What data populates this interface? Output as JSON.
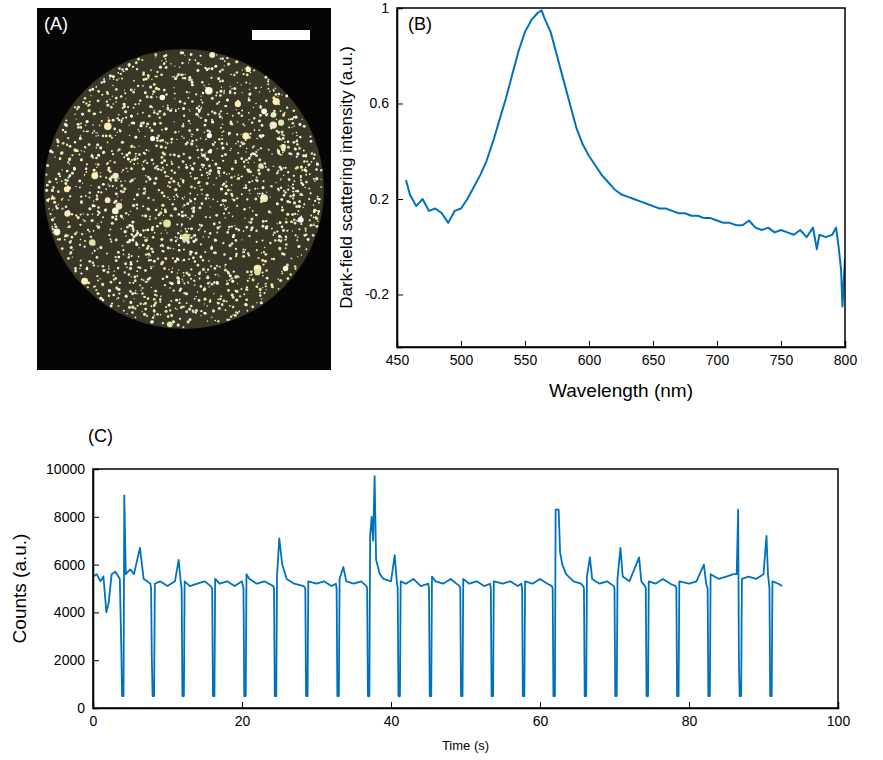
{
  "chart_data": [
    {
      "type": "image",
      "panel_label": "(A)"
    },
    {
      "type": "line",
      "panel_label": "(B)",
      "x_label": "Wavelength (nm)",
      "y_label": "Dark-field scattering intensity (a.u.)",
      "color": "#0072bd",
      "xlim": [
        450,
        800
      ],
      "xticks": [
        450,
        500,
        550,
        600,
        650,
        700,
        750,
        800
      ],
      "ylim": [
        -0.42,
        1
      ],
      "yticks": [
        -0.2,
        0.2,
        0.6,
        1
      ],
      "x": [
        457,
        460,
        465,
        470,
        475,
        480,
        485,
        490,
        495,
        500,
        505,
        510,
        515,
        520,
        525,
        530,
        535,
        540,
        545,
        550,
        555,
        560,
        563,
        565,
        570,
        575,
        580,
        585,
        590,
        595,
        600,
        605,
        610,
        615,
        620,
        625,
        630,
        635,
        640,
        645,
        650,
        655,
        660,
        665,
        670,
        675,
        680,
        685,
        690,
        695,
        700,
        705,
        710,
        715,
        720,
        725,
        730,
        735,
        740,
        745,
        750,
        755,
        760,
        765,
        770,
        775,
        778,
        780,
        785,
        790,
        793,
        795,
        797,
        798,
        800
      ],
      "values": [
        0.28,
        0.22,
        0.17,
        0.2,
        0.15,
        0.16,
        0.14,
        0.1,
        0.15,
        0.16,
        0.2,
        0.25,
        0.3,
        0.36,
        0.44,
        0.53,
        0.62,
        0.72,
        0.82,
        0.9,
        0.95,
        0.98,
        0.99,
        0.96,
        0.9,
        0.8,
        0.7,
        0.6,
        0.5,
        0.43,
        0.38,
        0.34,
        0.3,
        0.27,
        0.24,
        0.22,
        0.21,
        0.2,
        0.19,
        0.18,
        0.17,
        0.16,
        0.16,
        0.15,
        0.14,
        0.14,
        0.13,
        0.13,
        0.12,
        0.12,
        0.11,
        0.1,
        0.1,
        0.09,
        0.09,
        0.11,
        0.08,
        0.07,
        0.08,
        0.06,
        0.07,
        0.06,
        0.05,
        0.07,
        0.04,
        0.08,
        -0.01,
        0.05,
        0.04,
        0.05,
        0.08,
        0.0,
        -0.1,
        -0.25,
        -0.05
      ]
    },
    {
      "type": "line",
      "panel_label": "(C)",
      "x_label": "Time (s)",
      "y_label": "Counts (a.u.)",
      "color": "#0072bd",
      "xlim": [
        0,
        100
      ],
      "xticks": [
        0,
        20,
        40,
        60,
        80,
        100
      ],
      "ylim": [
        0,
        10000
      ],
      "yticks": [
        0,
        2000,
        4000,
        6000,
        8000,
        10000
      ],
      "x": [
        0,
        0.5,
        1,
        1.4,
        1.8,
        2.1,
        2.5,
        3,
        3.4,
        3.6,
        3.8,
        3.9,
        4.1,
        4.2,
        4.4,
        5,
        5.5,
        6.3,
        6.8,
        7.3,
        7.7,
        7.8,
        7.9,
        8,
        8.2,
        8.3,
        9,
        10,
        11,
        11.5,
        11.8,
        11.9,
        12,
        12.2,
        12.3,
        13,
        14,
        15,
        15.8,
        16,
        16.1,
        16.3,
        16.4,
        17,
        18,
        19,
        20,
        20.2,
        20.3,
        20.5,
        20.6,
        21,
        22,
        23,
        24.2,
        24.3,
        24.4,
        24.6,
        24.7,
        25,
        25.4,
        26,
        27,
        28.3,
        28.5,
        28.6,
        28.8,
        28.9,
        30,
        31,
        32,
        32.6,
        32.7,
        32.8,
        33,
        33.1,
        33.6,
        34,
        35,
        36,
        36.7,
        36.8,
        36.9,
        37.1,
        37.2,
        37.4,
        37.6,
        37.8,
        38,
        38.5,
        39,
        40,
        40.5,
        40.8,
        40.9,
        41,
        41.2,
        41.3,
        42,
        43,
        44,
        45,
        45.1,
        45.2,
        45.4,
        45.5,
        46,
        47,
        48,
        49.2,
        49.3,
        49.4,
        49.6,
        49.7,
        50.5,
        51.5,
        52.5,
        53.3,
        53.4,
        53.5,
        53.7,
        53.8,
        55,
        56,
        57,
        57.5,
        57.6,
        57.7,
        57.9,
        58,
        59,
        60,
        61,
        61.6,
        61.7,
        61.8,
        62,
        62.1,
        62.5,
        62.7,
        63,
        63.5,
        64.5,
        65.5,
        65.8,
        65.9,
        66,
        66.2,
        66.3,
        66.7,
        67,
        68,
        69,
        69.9,
        70,
        70.1,
        70.3,
        70.4,
        70.8,
        71.1,
        72,
        73.3,
        73.6,
        74.1,
        74.2,
        74.3,
        74.5,
        74.6,
        75.5,
        76.5,
        77.5,
        78.2,
        78.3,
        78.4,
        78.6,
        78.7,
        80,
        81,
        82,
        82.3,
        82.5,
        82.6,
        82.8,
        82.9,
        84,
        85,
        86,
        86.4,
        86.6,
        86.7,
        86.8,
        87,
        87.1,
        88,
        89,
        90,
        90.4,
        90.6,
        90.8,
        90.9,
        91.1,
        91.2,
        92,
        92.5
      ],
      "values": [
        5500,
        5600,
        5300,
        5500,
        4000,
        4400,
        5600,
        5700,
        5500,
        5400,
        2500,
        500,
        500,
        8900,
        5600,
        5800,
        5600,
        6700,
        5400,
        5300,
        5200,
        5000,
        2000,
        500,
        500,
        5200,
        5300,
        5100,
        5300,
        6200,
        5200,
        5000,
        500,
        500,
        5300,
        5100,
        5200,
        5300,
        5100,
        5000,
        500,
        500,
        5400,
        5200,
        5300,
        5100,
        5300,
        5000,
        500,
        500,
        5600,
        5400,
        5200,
        5300,
        5100,
        5000,
        500,
        500,
        5500,
        7100,
        6000,
        5400,
        5200,
        5100,
        5000,
        500,
        500,
        5300,
        5200,
        5300,
        5100,
        5200,
        5000,
        500,
        500,
        5400,
        5900,
        5300,
        5200,
        5300,
        5100,
        5000,
        500,
        500,
        7200,
        8000,
        7000,
        9700,
        6200,
        5600,
        5400,
        5300,
        6400,
        5200,
        5000,
        500,
        500,
        5300,
        5200,
        5400,
        5100,
        5200,
        5000,
        500,
        500,
        5500,
        5300,
        5200,
        5400,
        5100,
        5000,
        500,
        500,
        5400,
        5200,
        5300,
        5100,
        5200,
        5000,
        500,
        500,
        5300,
        5200,
        5300,
        5100,
        5200,
        5000,
        500,
        500,
        5300,
        5200,
        5400,
        5200,
        5100,
        5000,
        500,
        500,
        8300,
        8300,
        6500,
        6000,
        5600,
        5300,
        5200,
        5100,
        5000,
        500,
        500,
        5500,
        6300,
        5400,
        5200,
        5300,
        5100,
        5000,
        500,
        500,
        5400,
        6700,
        5500,
        5300,
        6300,
        5300,
        5100,
        5000,
        500,
        500,
        5300,
        5200,
        5400,
        5200,
        5100,
        5000,
        500,
        500,
        5300,
        5200,
        5300,
        6000,
        5200,
        5000,
        500,
        500,
        5600,
        5400,
        5500,
        5600,
        5600,
        8300,
        2000,
        500,
        500,
        5400,
        5500,
        5400,
        5600,
        7200,
        5600,
        5000,
        500,
        500,
        5300,
        5200,
        5100
      ]
    }
  ]
}
